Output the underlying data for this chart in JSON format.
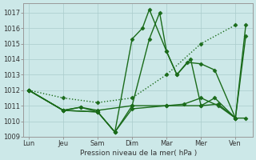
{
  "background_color": "#cce8e8",
  "grid_color": "#aacccc",
  "line_color": "#1a6b1a",
  "xlabel_text": "Pression niveau de la mer( hPa )",
  "x_tick_labels": [
    "Lun",
    "Jeu",
    "Sam",
    "Dim",
    "Mar",
    "Mer",
    "Ven"
  ],
  "x_tick_positions": [
    0,
    1,
    2,
    3,
    4,
    5,
    6
  ],
  "ylim": [
    1009,
    1017.6
  ],
  "yticks": [
    1009,
    1010,
    1011,
    1012,
    1013,
    1014,
    1015,
    1016,
    1017
  ],
  "xlim": [
    -0.15,
    6.5
  ],
  "series": [
    {
      "x": [
        0,
        1,
        2,
        3,
        4,
        5,
        6
      ],
      "y": [
        1012,
        1011.5,
        1011.2,
        1011.5,
        1013.0,
        1015.0,
        1016.2
      ],
      "style": ":",
      "marker": "D",
      "markersize": 2.5,
      "linewidth": 1.0
    },
    {
      "x": [
        0,
        1,
        2,
        2.5,
        3.0,
        3.3,
        3.5,
        4.0,
        4.3,
        4.6,
        5.0,
        5.4,
        6.0,
        6.3
      ],
      "y": [
        1012,
        1010.7,
        1010.6,
        1009.3,
        1015.3,
        1016.0,
        1017.2,
        1014.5,
        1013.0,
        1013.8,
        1013.7,
        1013.3,
        1010.2,
        1016.2
      ],
      "style": "-",
      "marker": "D",
      "markersize": 2.5,
      "linewidth": 1.0
    },
    {
      "x": [
        0,
        1,
        2,
        2.5,
        3.0,
        3.5,
        3.8,
        4.0,
        4.3,
        4.7,
        5.0,
        5.4,
        6.0,
        6.3
      ],
      "y": [
        1012,
        1010.7,
        1010.6,
        1009.3,
        1011.0,
        1015.3,
        1017.0,
        1014.5,
        1013.0,
        1014.0,
        1011.0,
        1011.5,
        1010.2,
        1015.5
      ],
      "style": "-",
      "marker": "D",
      "markersize": 2.5,
      "linewidth": 1.0
    },
    {
      "x": [
        0,
        1,
        1.5,
        2,
        2.5,
        3,
        4,
        5,
        5.5,
        6,
        6.3
      ],
      "y": [
        1012,
        1010.7,
        1010.9,
        1010.6,
        1009.3,
        1010.8,
        1011.0,
        1011.0,
        1011.1,
        1010.2,
        1010.2
      ],
      "style": "-",
      "marker": "D",
      "markersize": 2.5,
      "linewidth": 1.0
    },
    {
      "x": [
        0,
        1,
        1.5,
        2,
        3,
        4,
        4.5,
        5,
        5.5,
        6
      ],
      "y": [
        1012,
        1010.7,
        1010.9,
        1010.7,
        1011.0,
        1011.0,
        1011.1,
        1011.5,
        1011.0,
        1010.2
      ],
      "style": "-",
      "marker": "D",
      "markersize": 2.5,
      "linewidth": 1.0
    }
  ]
}
